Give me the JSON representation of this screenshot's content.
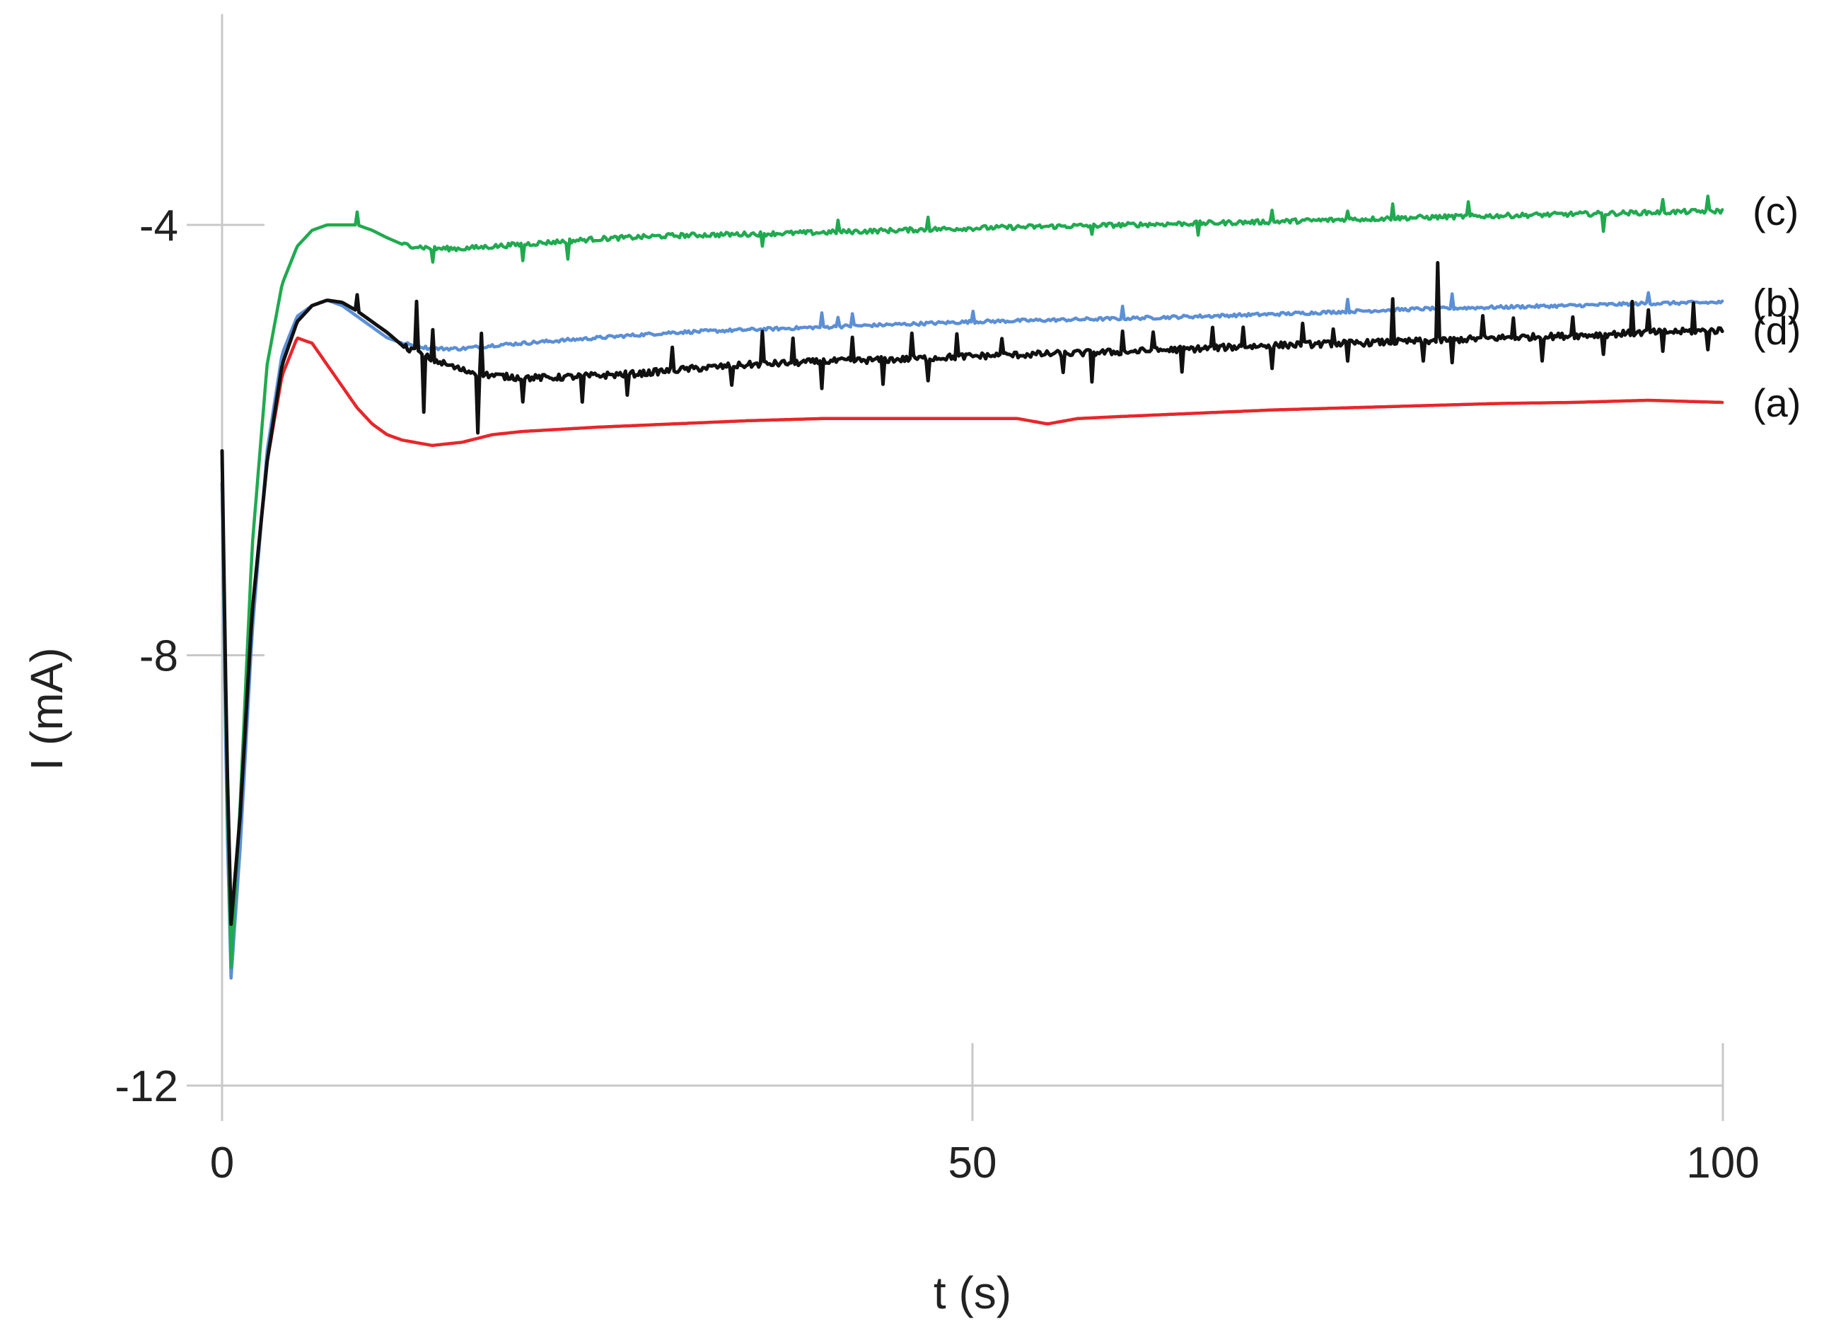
{
  "chart_data": {
    "type": "line",
    "title": "",
    "xlabel": "t (s)",
    "ylabel": "I (mA)",
    "xlim": [
      0,
      100
    ],
    "ylim": [
      -12,
      0
    ],
    "x_ticks": [
      0,
      50,
      100
    ],
    "y_ticks": [
      -4,
      -8,
      -12
    ],
    "x_tick_labels": [
      "0",
      "50",
      "100"
    ],
    "y_tick_labels": [
      "-4",
      "-8",
      "-12"
    ],
    "grid": false,
    "legend": "inline labels at right end of lines",
    "series": [
      {
        "label": "(a)",
        "color": "#e8262a",
        "points": [
          [
            0,
            -6.4
          ],
          [
            0.3,
            -9.2
          ],
          [
            0.6,
            -10.9
          ],
          [
            1.2,
            -9.6
          ],
          [
            2,
            -7.6
          ],
          [
            3,
            -6.2
          ],
          [
            4,
            -5.4
          ],
          [
            5,
            -5.05
          ],
          [
            6,
            -5.1
          ],
          [
            7,
            -5.3
          ],
          [
            8,
            -5.5
          ],
          [
            9,
            -5.7
          ],
          [
            10,
            -5.85
          ],
          [
            11,
            -5.95
          ],
          [
            12,
            -6.0
          ],
          [
            14,
            -6.05
          ],
          [
            16,
            -6.02
          ],
          [
            18,
            -5.95
          ],
          [
            20,
            -5.92
          ],
          [
            25,
            -5.88
          ],
          [
            30,
            -5.85
          ],
          [
            35,
            -5.82
          ],
          [
            40,
            -5.8
          ],
          [
            45,
            -5.8
          ],
          [
            50,
            -5.8
          ],
          [
            53,
            -5.8
          ],
          [
            55,
            -5.85
          ],
          [
            57,
            -5.8
          ],
          [
            60,
            -5.78
          ],
          [
            65,
            -5.75
          ],
          [
            70,
            -5.72
          ],
          [
            75,
            -5.7
          ],
          [
            80,
            -5.68
          ],
          [
            85,
            -5.66
          ],
          [
            90,
            -5.65
          ],
          [
            95,
            -5.63
          ],
          [
            100,
            -5.65
          ]
        ],
        "noise": 0,
        "spikes": []
      },
      {
        "label": "(b)",
        "color": "#5b8fd6",
        "points": [
          [
            0,
            -6.4
          ],
          [
            0.3,
            -9.4
          ],
          [
            0.6,
            -11.0
          ],
          [
            1.2,
            -9.8
          ],
          [
            2,
            -7.8
          ],
          [
            3,
            -6.1
          ],
          [
            4,
            -5.2
          ],
          [
            5,
            -4.85
          ],
          [
            6,
            -4.75
          ],
          [
            7,
            -4.7
          ],
          [
            8,
            -4.75
          ],
          [
            9,
            -4.85
          ],
          [
            10,
            -4.95
          ],
          [
            11,
            -5.05
          ],
          [
            12,
            -5.1
          ],
          [
            14,
            -5.15
          ],
          [
            16,
            -5.15
          ],
          [
            18,
            -5.12
          ],
          [
            20,
            -5.1
          ],
          [
            25,
            -5.05
          ],
          [
            30,
            -5.0
          ],
          [
            40,
            -4.95
          ],
          [
            50,
            -4.9
          ],
          [
            60,
            -4.87
          ],
          [
            70,
            -4.83
          ],
          [
            80,
            -4.78
          ],
          [
            90,
            -4.75
          ],
          [
            95,
            -4.73
          ],
          [
            100,
            -4.72
          ]
        ],
        "noise": 0.015,
        "spikes": [
          [
            40,
            0.12
          ],
          [
            41,
            0.1
          ],
          [
            42,
            0.12
          ],
          [
            50,
            0.1
          ],
          [
            60,
            0.1
          ],
          [
            75,
            0.1
          ],
          [
            82,
            0.12
          ],
          [
            95,
            0.1
          ]
        ]
      },
      {
        "label": "(c)",
        "color": "#1faa4f",
        "points": [
          [
            0,
            -6.2
          ],
          [
            0.3,
            -9.0
          ],
          [
            0.6,
            -10.9
          ],
          [
            1.2,
            -9.4
          ],
          [
            2,
            -7.0
          ],
          [
            3,
            -5.3
          ],
          [
            4,
            -4.55
          ],
          [
            5,
            -4.2
          ],
          [
            6,
            -4.05
          ],
          [
            7,
            -4.0
          ],
          [
            8,
            -4.0
          ],
          [
            9,
            -4.0
          ],
          [
            10,
            -4.05
          ],
          [
            11,
            -4.12
          ],
          [
            12,
            -4.18
          ],
          [
            14,
            -4.22
          ],
          [
            16,
            -4.22
          ],
          [
            18,
            -4.2
          ],
          [
            20,
            -4.18
          ],
          [
            25,
            -4.13
          ],
          [
            30,
            -4.1
          ],
          [
            40,
            -4.07
          ],
          [
            50,
            -4.03
          ],
          [
            60,
            -4.0
          ],
          [
            70,
            -3.97
          ],
          [
            80,
            -3.93
          ],
          [
            90,
            -3.9
          ],
          [
            100,
            -3.87
          ]
        ],
        "noise": 0.022,
        "spikes": [
          [
            9,
            0.12
          ],
          [
            14,
            -0.12
          ],
          [
            20,
            -0.15
          ],
          [
            23,
            -0.18
          ],
          [
            36,
            -0.13
          ],
          [
            41,
            0.1
          ],
          [
            47,
            0.12
          ],
          [
            58,
            -0.1
          ],
          [
            65,
            -0.1
          ],
          [
            70,
            0.1
          ],
          [
            75,
            0.1
          ],
          [
            78,
            0.15
          ],
          [
            83,
            0.12
          ],
          [
            92,
            -0.15
          ],
          [
            96,
            0.1
          ],
          [
            99,
            0.12
          ]
        ]
      },
      {
        "label": "(d)",
        "color": "#111111",
        "points": [
          [
            0,
            -6.1
          ],
          [
            0.3,
            -8.8
          ],
          [
            0.6,
            -10.5
          ],
          [
            1.2,
            -9.5
          ],
          [
            2,
            -7.6
          ],
          [
            3,
            -6.2
          ],
          [
            4,
            -5.3
          ],
          [
            5,
            -4.9
          ],
          [
            6,
            -4.75
          ],
          [
            7,
            -4.7
          ],
          [
            8,
            -4.72
          ],
          [
            9,
            -4.8
          ],
          [
            10,
            -4.9
          ],
          [
            11,
            -5.0
          ],
          [
            12,
            -5.12
          ],
          [
            14,
            -5.25
          ],
          [
            16,
            -5.35
          ],
          [
            18,
            -5.4
          ],
          [
            20,
            -5.42
          ],
          [
            22,
            -5.42
          ],
          [
            25,
            -5.4
          ],
          [
            28,
            -5.38
          ],
          [
            30,
            -5.35
          ],
          [
            35,
            -5.3
          ],
          [
            40,
            -5.27
          ],
          [
            45,
            -5.25
          ],
          [
            50,
            -5.22
          ],
          [
            55,
            -5.2
          ],
          [
            60,
            -5.18
          ],
          [
            65,
            -5.15
          ],
          [
            70,
            -5.12
          ],
          [
            75,
            -5.1
          ],
          [
            80,
            -5.08
          ],
          [
            85,
            -5.05
          ],
          [
            90,
            -5.03
          ],
          [
            95,
            -5.0
          ],
          [
            100,
            -4.98
          ]
        ],
        "noise": 0.03,
        "spikes": [
          [
            9,
            0.15
          ],
          [
            13,
            0.5
          ],
          [
            13.4,
            -0.55
          ],
          [
            14,
            0.25
          ],
          [
            17,
            -0.55
          ],
          [
            17.3,
            0.35
          ],
          [
            20,
            -0.2
          ],
          [
            24,
            -0.25
          ],
          [
            27,
            -0.2
          ],
          [
            30,
            0.2
          ],
          [
            34,
            -0.2
          ],
          [
            36,
            0.3
          ],
          [
            38,
            0.2
          ],
          [
            40,
            -0.22
          ],
          [
            42,
            0.2
          ],
          [
            44,
            -0.22
          ],
          [
            46,
            0.25
          ],
          [
            47,
            -0.2
          ],
          [
            49,
            0.2
          ],
          [
            52,
            0.18
          ],
          [
            56,
            -0.2
          ],
          [
            58,
            -0.25
          ],
          [
            60,
            0.18
          ],
          [
            62,
            0.2
          ],
          [
            64,
            -0.22
          ],
          [
            66,
            0.18
          ],
          [
            68,
            0.2
          ],
          [
            70,
            -0.2
          ],
          [
            72,
            0.22
          ],
          [
            74,
            0.15
          ],
          [
            75,
            -0.18
          ],
          [
            78,
            0.4
          ],
          [
            80,
            -0.2
          ],
          [
            81,
            0.7
          ],
          [
            82,
            -0.22
          ],
          [
            84,
            0.2
          ],
          [
            86,
            0.18
          ],
          [
            88,
            -0.2
          ],
          [
            90,
            0.2
          ],
          [
            92,
            -0.18
          ],
          [
            94,
            0.3
          ],
          [
            95,
            0.2
          ],
          [
            96,
            -0.2
          ],
          [
            98,
            0.25
          ],
          [
            99,
            -0.15
          ]
        ]
      }
    ]
  }
}
